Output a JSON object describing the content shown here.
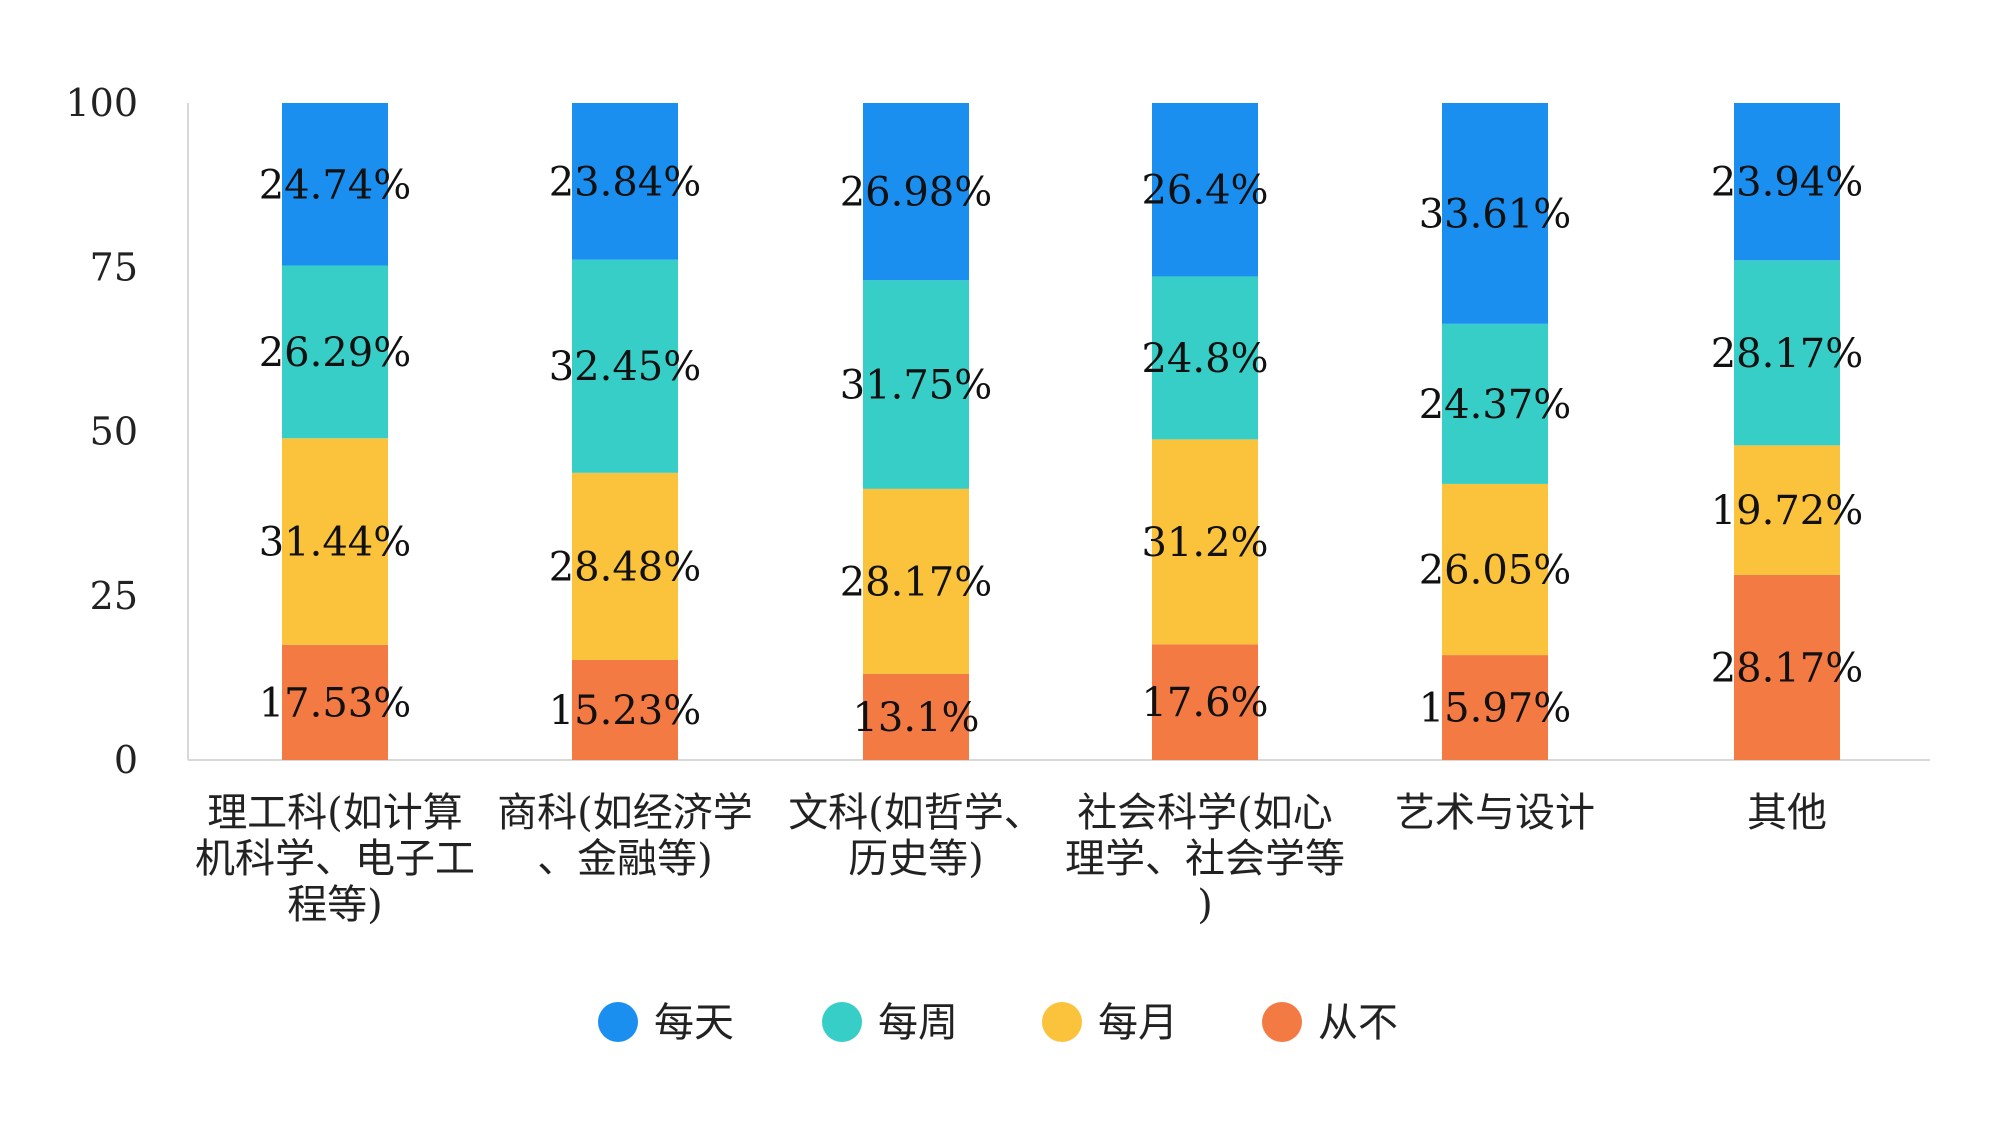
{
  "chart_data": {
    "type": "bar",
    "stacked": true,
    "title": "",
    "xlabel": "",
    "ylabel": "",
    "ylim": [
      0,
      100
    ],
    "yticks": [
      "0",
      "25",
      "50",
      "75",
      "100"
    ],
    "grid": false,
    "legend_position": "bottom",
    "categories": [
      [
        "理工科(如计算",
        "机科学、电子工",
        "程等)"
      ],
      [
        "商科(如经济学",
        "、金融等)"
      ],
      [
        "文科(如哲学、",
        "历史等)"
      ],
      [
        "社会科学(如心",
        "理学、社会学等",
        ")"
      ],
      [
        "艺术与设计"
      ],
      [
        "其他"
      ]
    ],
    "series": [
      {
        "name": "从不",
        "color": "#f47a44",
        "values": [
          17.53,
          15.23,
          13.1,
          17.6,
          15.97,
          28.17
        ],
        "labels": [
          "17.53%",
          "15.23%",
          "13.1%",
          "17.6%",
          "15.97%",
          "28.17%"
        ]
      },
      {
        "name": "每月",
        "color": "#fbc33c",
        "values": [
          31.44,
          28.48,
          28.17,
          31.2,
          26.05,
          19.72
        ],
        "labels": [
          "31.44%",
          "28.48%",
          "28.17%",
          "31.2%",
          "26.05%",
          "19.72%"
        ]
      },
      {
        "name": "每周",
        "color": "#37cec7",
        "values": [
          26.29,
          32.45,
          31.75,
          24.8,
          24.37,
          28.17
        ],
        "labels": [
          "26.29%",
          "32.45%",
          "31.75%",
          "24.8%",
          "24.37%",
          "28.17%"
        ]
      },
      {
        "name": "每天",
        "color": "#1a8ff0",
        "values": [
          24.74,
          23.84,
          26.98,
          26.4,
          33.61,
          23.94
        ],
        "labels": [
          "24.74%",
          "23.84%",
          "26.98%",
          "26.4%",
          "33.61%",
          "23.94%"
        ]
      }
    ],
    "legend_order": [
      "每天",
      "每周",
      "每月",
      "从不"
    ]
  }
}
